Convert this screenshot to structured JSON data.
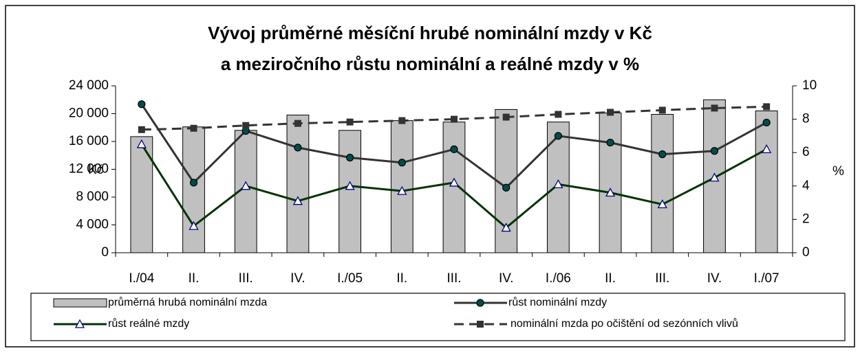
{
  "chart_data": {
    "type": "combo",
    "title": [
      "Vývoj průměrné měsíční hrubé nominální mzdy v Kč",
      "a meziročního růstu nominální a reálné mzdy v %"
    ],
    "y_label": "Kč",
    "y2_label": "%",
    "categories": [
      "I./04",
      "II.",
      "III.",
      "IV.",
      "I./05",
      "II.",
      "III.",
      "IV.",
      "I./06",
      "II.",
      "III.",
      "IV.",
      "I./07"
    ],
    "ylim": [
      0,
      24000
    ],
    "yticks": [
      0,
      {
        "value": 4000,
        "label": "4 000"
      },
      {
        "value": 8000,
        "label": "8 000"
      },
      {
        "value": 12000,
        "label": "12 000"
      },
      {
        "value": 16000,
        "label": "16 000"
      },
      {
        "value": 20000,
        "label": "20 000"
      },
      {
        "value": 24000,
        "label": "24 000"
      }
    ],
    "y2lim": [
      0,
      10
    ],
    "y2ticks": [
      0,
      2,
      4,
      6,
      8,
      10
    ],
    "grid": false,
    "series": [
      {
        "name": "průměrná hrubá nominální mzda",
        "type": "bar",
        "color": "#c0c0c0",
        "values": [
          16700,
          18100,
          17600,
          19800,
          17600,
          19000,
          18800,
          20600,
          18800,
          20100,
          19900,
          22000,
          20400
        ]
      },
      {
        "name": "růst nominální mzdy",
        "type": "line",
        "marker": "circle",
        "axis": "y2",
        "color": "#333333",
        "marker_color": "#004d4d",
        "values": [
          8.9,
          4.2,
          7.3,
          6.3,
          5.7,
          5.4,
          6.2,
          3.9,
          7.0,
          6.6,
          5.9,
          6.1,
          7.8
        ]
      },
      {
        "name": "růst reálné mzdy",
        "type": "line",
        "marker": "triangle",
        "axis": "y2",
        "color": "#003300",
        "marker_color": "#ffffff",
        "values": [
          6.5,
          1.6,
          4.0,
          3.1,
          4.0,
          3.7,
          4.2,
          1.5,
          4.1,
          3.6,
          2.9,
          4.5,
          6.2
        ]
      },
      {
        "name": "nominální mzda po očištění od sezónních vlivů",
        "type": "line",
        "marker": "square",
        "dashed": true,
        "color": "#333333",
        "marker_color": "#333333",
        "values": [
          17700,
          17900,
          18300,
          18600,
          18800,
          19000,
          19200,
          19500,
          19900,
          20200,
          20500,
          20800,
          21000
        ]
      }
    ]
  }
}
